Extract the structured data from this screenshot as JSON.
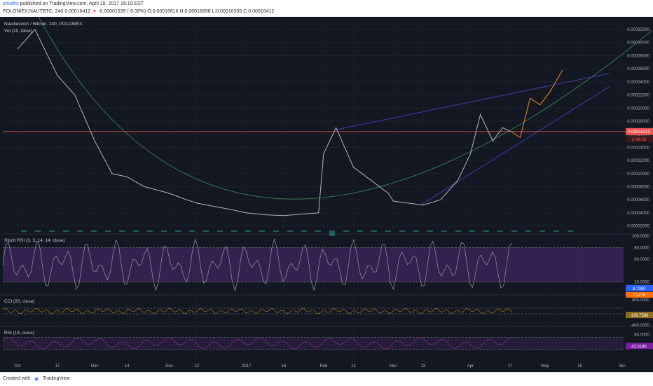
{
  "header": {
    "author": "smoths",
    "published": "published on TradingView.com, April 18, 2017 16:10 EST",
    "ohlc": {
      "symbol": "POLONIEX:NAUTBTC, 240",
      "last": "0.00016412",
      "change": "-0.00001639 (-9.08%)",
      "open": "O:0.00016816",
      "high": "H:0.00016898",
      "low": "L:0.00016335",
      "close": "C:0.00016412"
    }
  },
  "footer": {
    "created_with": "Created with",
    "brand": "TradingView"
  },
  "colors": {
    "background": "#131722",
    "price_line": "#b2b5be",
    "current_price": "#ef5350",
    "rsi_fill": "#4a2a6e",
    "rsi_line": "#9598a1",
    "cci_line": "#b8860b",
    "rsi14_line": "#9c27b0",
    "trend_blue": "#3a3a9a",
    "curve_green": "#2e7d4f",
    "projection": "#e67e22"
  },
  "chart_data": [
    {
      "type": "line",
      "title": "Nautiluscoin / Bitcoin, 240, POLONIEX",
      "indicator_label": "Vol (20, false)",
      "x": [
        "Oct 1",
        "Oct 8",
        "Oct 17",
        "Oct 24",
        "Nov 1",
        "Nov 8",
        "Nov 14",
        "Nov 21",
        "Dec 1",
        "Dec 8",
        "Dec 12",
        "Dec 19",
        "Dec 26",
        "Jan 1",
        "Jan 9",
        "Jan 16",
        "Jan 23",
        "Jan 30",
        "Feb 1",
        "Feb 6",
        "Feb 13",
        "Feb 20",
        "Feb 27",
        "Mar 1",
        "Mar 7",
        "Mar 13",
        "Mar 20",
        "Mar 27",
        "Apr 1",
        "Apr 5",
        "Apr 10",
        "Apr 14",
        "Apr 17"
      ],
      "y": [
        0.00029,
        0.00032,
        0.00025,
        0.00022,
        0.00015,
        0.0001,
        9.5e-05,
        8e-05,
        7e-05,
        6e-05,
        5.5e-05,
        5e-05,
        4.5e-05,
        4e-05,
        3.7e-05,
        3.6e-05,
        3.8e-05,
        4e-05,
        0.00013,
        0.00017,
        0.00011,
        9e-05,
        7e-05,
        5.8e-05,
        5.5e-05,
        5.2e-05,
        6e-05,
        9e-05,
        0.00013,
        0.00019,
        0.00015,
        0.00017,
        0.00016412
      ],
      "y_ticks": [
        "0.00032000",
        "0.00030000",
        "0.00028000",
        "0.00026000",
        "0.00024000",
        "0.00022000",
        "0.00020000",
        "0.00018000",
        "0.00016000",
        "0.00014000",
        "0.00012000",
        "0.00010000",
        "0.00008000",
        "0.00006000",
        "0.00004000",
        "0.00002000"
      ],
      "ylim": [
        1e-05,
        0.000335
      ],
      "current_price_label": "0.00016412",
      "countdown_label": "2:49:58",
      "x_ticks": [
        "Oct",
        "17",
        "Nov",
        "14",
        "Dec",
        "12",
        "2017",
        "16",
        "Feb",
        "13",
        "Mar",
        "13",
        "Apr",
        "17",
        "May",
        "15",
        "Jun"
      ],
      "projection": [
        {
          "x": "Apr 17",
          "y": 0.000165
        },
        {
          "x": "Apr 21",
          "y": 0.000155
        },
        {
          "x": "Apr 25",
          "y": 0.000215
        },
        {
          "x": "Apr 29",
          "y": 0.000205
        },
        {
          "x": "May 3",
          "y": 0.000225
        },
        {
          "x": "May 8",
          "y": 0.000258
        }
      ]
    },
    {
      "type": "line",
      "title": "Stoch RSI (3, 3, 14, 14, close)",
      "y_ticks": [
        "100.0000",
        "80.0000",
        "60.0000",
        "20.0000"
      ],
      "ylim": [
        0,
        100
      ],
      "upper_band": 80,
      "lower_band": 20,
      "value_labels": [
        "8.7380",
        "7.2278"
      ]
    },
    {
      "type": "line",
      "title": "CCI (20, close)",
      "y_ticks": [
        "400.0000",
        "-400.0000"
      ],
      "ylim": [
        -500,
        500
      ],
      "value_label": "-126.7586"
    },
    {
      "type": "line",
      "title": "RSI (14, close)",
      "y_ticks": [
        "80.0000"
      ],
      "ylim": [
        0,
        100
      ],
      "upper_band": 70,
      "lower_band": 30,
      "value_label": "42.0185"
    }
  ]
}
